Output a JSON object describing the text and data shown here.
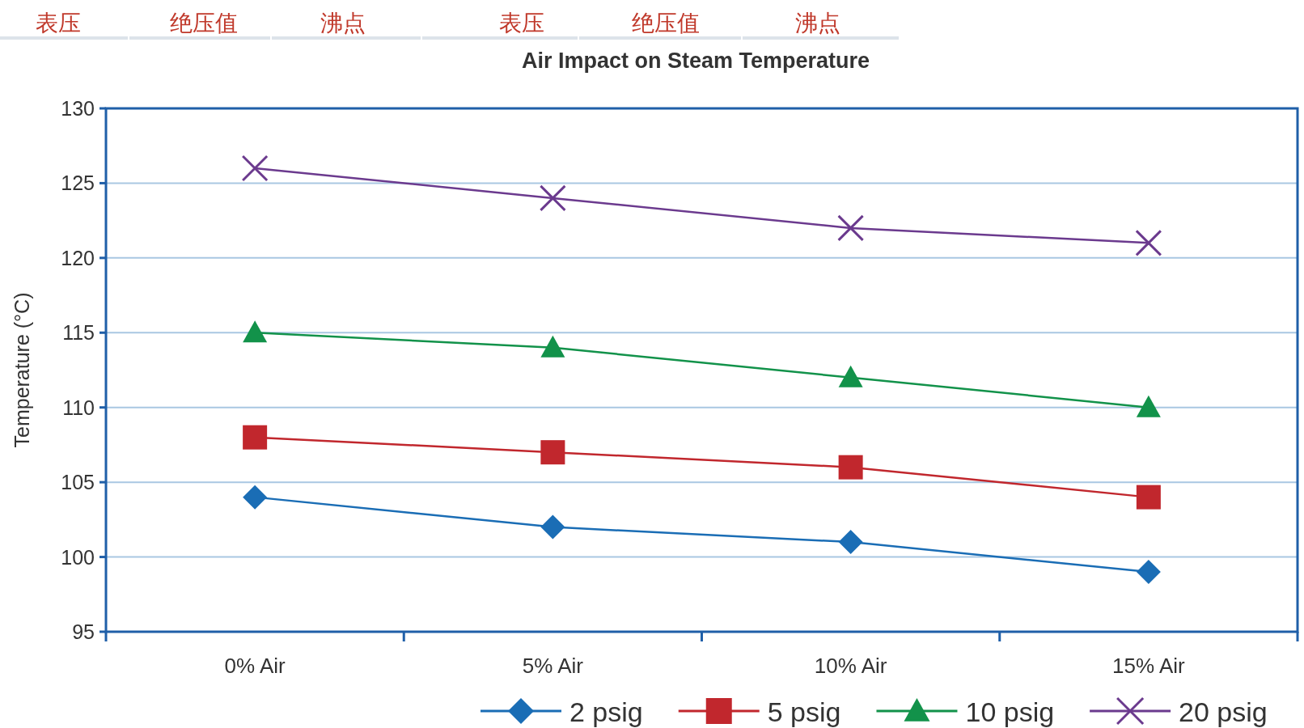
{
  "chart_data": {
    "type": "line",
    "title": "Air Impact on Steam Temperature",
    "ylabel": "Temperature (°C)",
    "categories": [
      "0% Air",
      "5% Air",
      "10% Air",
      "15% Air"
    ],
    "series": [
      {
        "name": "2 psig",
        "color": "#1a6db5",
        "marker": "diamond",
        "values": [
          104,
          102,
          101,
          99
        ]
      },
      {
        "name": "5 psig",
        "color": "#c1272d",
        "marker": "square",
        "values": [
          108,
          107,
          106,
          104
        ]
      },
      {
        "name": "10 psig",
        "color": "#12924a",
        "marker": "triangle",
        "values": [
          115,
          114,
          112,
          110
        ]
      },
      {
        "name": "20 psig",
        "color": "#6b3a8e",
        "marker": "cross",
        "values": [
          126,
          124,
          122,
          121
        ]
      }
    ],
    "ylim": [
      95,
      130
    ],
    "yticks": [
      95,
      100,
      105,
      110,
      115,
      120,
      125,
      130
    ],
    "grid": "y",
    "legend": "bottom",
    "line_style": "solid",
    "annotations": [
      "表压",
      "绝压值",
      "沸点",
      "表压",
      "绝压值",
      "沸点"
    ]
  }
}
